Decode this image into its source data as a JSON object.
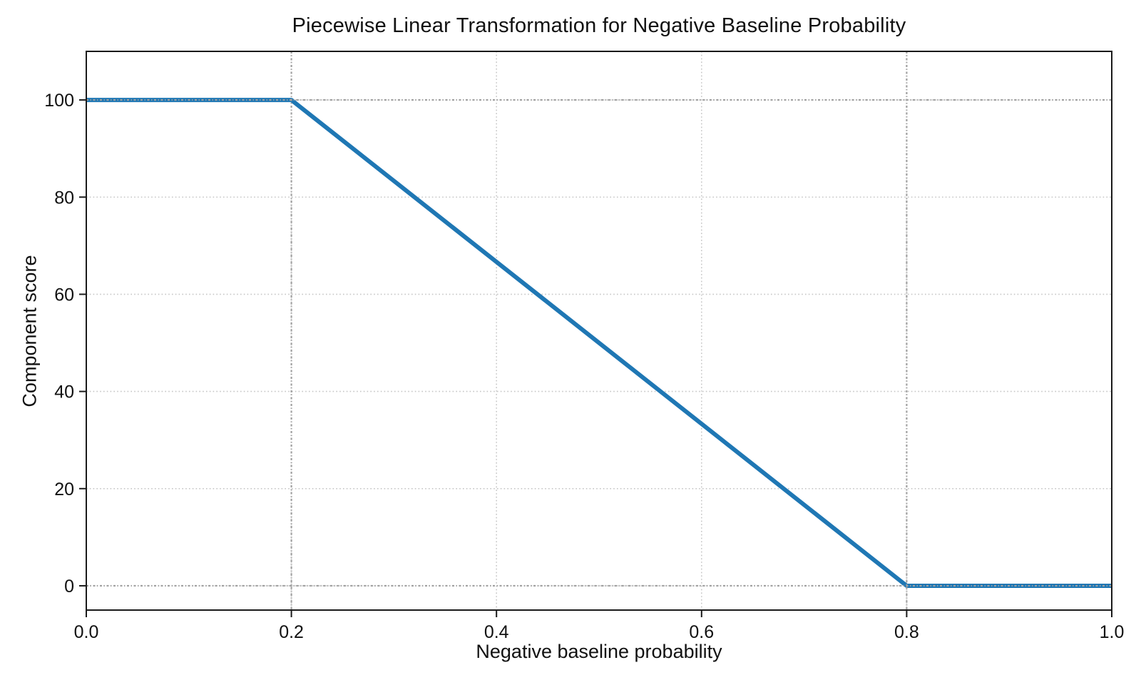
{
  "chart_data": {
    "type": "line",
    "title": "Piecewise Linear Transformation for Negative Baseline Probability",
    "xlabel": "Negative baseline probability",
    "ylabel": "Component score",
    "xlim": [
      0.0,
      1.0
    ],
    "ylim": [
      -5,
      110
    ],
    "xticks": [
      0.0,
      0.2,
      0.4,
      0.6,
      0.8,
      1.0
    ],
    "xtick_labels": [
      "0.0",
      "0.2",
      "0.4",
      "0.6",
      "0.8",
      "1.0"
    ],
    "yticks": [
      0,
      20,
      40,
      60,
      80,
      100
    ],
    "ytick_labels": [
      "0",
      "20",
      "40",
      "60",
      "80",
      "100"
    ],
    "grid": true,
    "grid_style": "dotted",
    "legend": "none",
    "series": [
      {
        "name": "component-score",
        "color": "#1f77b4",
        "points": [
          [
            0.0,
            100
          ],
          [
            0.2,
            100
          ],
          [
            0.8,
            0
          ],
          [
            1.0,
            0
          ]
        ]
      }
    ],
    "reference_lines": {
      "x": [
        0.2,
        0.8
      ],
      "y": [
        0,
        100
      ]
    },
    "colors": {
      "line": "#1f77b4",
      "grid": "#c6c6c6",
      "reference": "#a0a0a0",
      "spine": "#1a1a1a",
      "text": "#111111",
      "background": "#ffffff"
    }
  }
}
